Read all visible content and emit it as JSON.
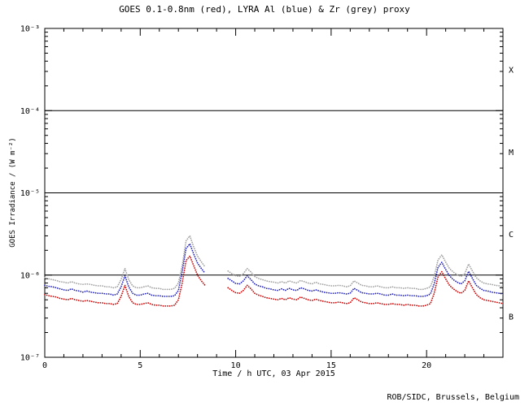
{
  "chart_data": {
    "type": "scatter",
    "title": "GOES 0.1-0.8nm (red), LYRA Al (blue) & Zr (grey) proxy",
    "xlabel": "Time / h UTC, 03 Apr 2015",
    "ylabel": "GOES Irradiance / (W m⁻²)",
    "footer": "ROB/SIDC, Brussels, Belgium",
    "x_range": [
      0,
      24
    ],
    "x_major_ticks": [
      0,
      5,
      10,
      15,
      20
    ],
    "x_minor_step": 1,
    "y_log_range": [
      -7,
      -3
    ],
    "y_tick_labels": [
      "10⁻³",
      "10⁻⁴",
      "10⁻⁵",
      "10⁻⁶",
      "10⁻⁷"
    ],
    "hlines_log": [
      -4,
      -5,
      -6
    ],
    "flare_classes": [
      "X",
      "M",
      "C",
      "B"
    ],
    "grid": "off",
    "legend": "in-title",
    "x_step": 0.2,
    "unit": "W m-2",
    "values_scale": 1e-07,
    "series": [
      {
        "name": "LYRA Zr proxy",
        "color": "#a0a0a0",
        "values_e7": [
          9.3,
          9.0,
          8.8,
          8.6,
          8.3,
          8.2,
          8.0,
          8.3,
          8.0,
          7.8,
          7.7,
          7.8,
          7.7,
          7.5,
          7.4,
          7.4,
          7.2,
          7.2,
          7.0,
          7.2,
          8.8,
          12.0,
          8.8,
          7.4,
          7.0,
          7.0,
          7.2,
          7.4,
          7.0,
          6.9,
          6.9,
          6.7,
          6.7,
          6.7,
          6.9,
          8.0,
          13.0,
          26.0,
          30.0,
          22.0,
          17.0,
          14.5,
          12.5,
          null,
          null,
          null,
          null,
          null,
          11.2,
          10.4,
          9.8,
          9.6,
          10.4,
          12.0,
          10.9,
          9.6,
          9.1,
          8.8,
          8.5,
          8.3,
          8.2,
          8.0,
          8.3,
          8.0,
          8.5,
          8.2,
          8.0,
          8.6,
          8.3,
          8.0,
          7.8,
          8.2,
          7.8,
          7.7,
          7.5,
          7.4,
          7.4,
          7.5,
          7.4,
          7.2,
          7.4,
          8.5,
          8.0,
          7.5,
          7.4,
          7.2,
          7.2,
          7.4,
          7.2,
          7.0,
          7.0,
          7.2,
          7.0,
          7.0,
          6.9,
          7.0,
          6.9,
          6.9,
          6.7,
          6.7,
          6.9,
          7.2,
          9.6,
          15.2,
          17.6,
          14.4,
          12.0,
          10.9,
          10.1,
          9.6,
          10.4,
          13.6,
          11.2,
          9.3,
          8.5,
          8.0,
          7.8,
          7.7,
          7.5,
          7.4,
          7.2
        ]
      },
      {
        "name": "LYRA Al proxy",
        "color": "#2222bb",
        "values_e7": [
          7.5,
          7.3,
          7.2,
          7.0,
          6.8,
          6.6,
          6.5,
          6.8,
          6.5,
          6.4,
          6.2,
          6.4,
          6.2,
          6.1,
          6.0,
          6.0,
          5.9,
          5.9,
          5.7,
          5.9,
          7.2,
          9.8,
          7.2,
          6.0,
          5.7,
          5.7,
          5.9,
          6.0,
          5.7,
          5.6,
          5.6,
          5.5,
          5.5,
          5.5,
          5.6,
          6.5,
          11.0,
          21.0,
          24.0,
          18.0,
          14.0,
          12.0,
          10.5,
          null,
          null,
          null,
          null,
          null,
          9.1,
          8.5,
          7.9,
          7.8,
          8.5,
          9.8,
          8.8,
          7.8,
          7.4,
          7.2,
          6.9,
          6.8,
          6.6,
          6.5,
          6.8,
          6.5,
          6.9,
          6.6,
          6.5,
          7.0,
          6.8,
          6.5,
          6.4,
          6.6,
          6.4,
          6.2,
          6.1,
          6.0,
          6.0,
          6.1,
          6.0,
          5.9,
          6.0,
          6.9,
          6.5,
          6.1,
          6.0,
          5.9,
          5.9,
          6.0,
          5.9,
          5.7,
          5.7,
          5.9,
          5.7,
          5.7,
          5.6,
          5.7,
          5.6,
          5.6,
          5.5,
          5.5,
          5.6,
          5.9,
          7.8,
          12.4,
          14.3,
          11.7,
          9.8,
          8.8,
          8.2,
          7.8,
          8.5,
          11.1,
          9.1,
          7.5,
          6.9,
          6.5,
          6.4,
          6.2,
          6.1,
          6.0,
          5.9
        ]
      },
      {
        "name": "GOES 0.1-0.8nm",
        "color": "#cc0000",
        "values_e7": [
          5.8,
          5.6,
          5.5,
          5.4,
          5.2,
          5.1,
          5.0,
          5.2,
          5.0,
          4.9,
          4.8,
          4.9,
          4.8,
          4.7,
          4.6,
          4.6,
          4.5,
          4.5,
          4.4,
          4.5,
          5.5,
          7.5,
          5.5,
          4.6,
          4.4,
          4.4,
          4.5,
          4.6,
          4.4,
          4.3,
          4.3,
          4.2,
          4.2,
          4.2,
          4.3,
          5.0,
          8.0,
          15.0,
          17.0,
          13.0,
          10.0,
          8.5,
          7.5,
          null,
          null,
          null,
          null,
          null,
          7.0,
          6.5,
          6.1,
          6.0,
          6.5,
          7.5,
          6.8,
          6.0,
          5.7,
          5.5,
          5.3,
          5.2,
          5.1,
          5.0,
          5.2,
          5.0,
          5.3,
          5.1,
          5.0,
          5.4,
          5.2,
          5.0,
          4.9,
          5.1,
          4.9,
          4.8,
          4.7,
          4.6,
          4.6,
          4.7,
          4.6,
          4.5,
          4.6,
          5.3,
          5.0,
          4.7,
          4.6,
          4.5,
          4.5,
          4.6,
          4.5,
          4.4,
          4.4,
          4.5,
          4.4,
          4.4,
          4.3,
          4.4,
          4.3,
          4.3,
          4.2,
          4.2,
          4.3,
          4.5,
          6.0,
          9.5,
          11.0,
          9.0,
          7.5,
          6.8,
          6.3,
          6.0,
          6.5,
          8.5,
          7.0,
          5.8,
          5.3,
          5.0,
          4.9,
          4.8,
          4.7,
          4.6,
          4.5
        ]
      }
    ]
  }
}
